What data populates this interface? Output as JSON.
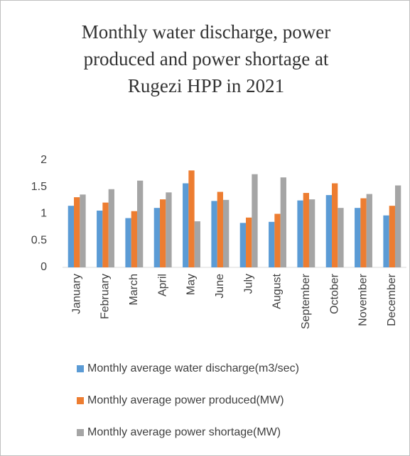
{
  "chart_data": {
    "type": "bar",
    "title": "Monthly water discharge, power produced and power shortage at Rugezi HPP in 2021",
    "categories": [
      "January",
      "February",
      "March",
      "April",
      "May",
      "June",
      "July",
      "August",
      "September",
      "October",
      "November",
      "December"
    ],
    "series": [
      {
        "name": "Monthly average water discharge(m3/sec)",
        "color": "#5b9bd5",
        "values": [
          1.15,
          1.06,
          0.92,
          1.11,
          1.57,
          1.24,
          0.83,
          0.85,
          1.25,
          1.35,
          1.11,
          0.97
        ]
      },
      {
        "name": "Monthly average power produced(MW)",
        "color": "#ed7d31",
        "values": [
          1.31,
          1.21,
          1.05,
          1.27,
          1.81,
          1.41,
          0.93,
          1.0,
          1.39,
          1.57,
          1.29,
          1.15
        ]
      },
      {
        "name": "Monthly average power shortage(MW)",
        "color": "#a5a5a5",
        "values": [
          1.36,
          1.46,
          1.62,
          1.4,
          0.86,
          1.26,
          1.74,
          1.68,
          1.27,
          1.11,
          1.37,
          1.53
        ]
      }
    ],
    "ylim": [
      0,
      2
    ],
    "yticks": [
      0,
      0.5,
      1,
      1.5,
      2
    ],
    "grid": false,
    "legend": "bottom"
  }
}
